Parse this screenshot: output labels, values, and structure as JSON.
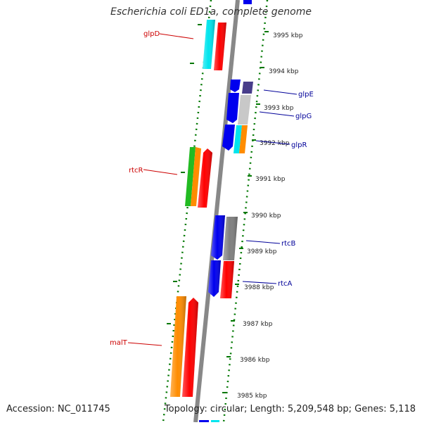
{
  "title": "Escherichia coli ED1a, complete genome",
  "accession": "Accession: NC_011745",
  "topology": "Topology: circular; Length: 5,209,548 bp; Genes: 5,118",
  "kbp_labels": [
    "3995 kbp",
    "3994 kbp",
    "3993 kbp",
    "3992 kbp",
    "3991 kbp",
    "3990 kbp",
    "3989 kbp",
    "3988 kbp",
    "3987 kbp",
    "3986 kbp",
    "3985 kbp"
  ],
  "left_genes": [
    "glpD",
    "rtcR",
    "malT"
  ],
  "right_genes": [
    "glpE",
    "glpG",
    "glpR",
    "rtcB",
    "rtcA"
  ],
  "colors": {
    "red": "#ff0000",
    "blue": "#0000ee",
    "cyan": "#00e5ee",
    "orange": "#ff8c00",
    "green": "#22bb22",
    "gray": "#7f7f7f",
    "lightgray": "#c8c8c8",
    "navy": "#483d8b",
    "tick_green": "#007700",
    "label_red": "#cc0000",
    "label_blue": "#000099"
  }
}
